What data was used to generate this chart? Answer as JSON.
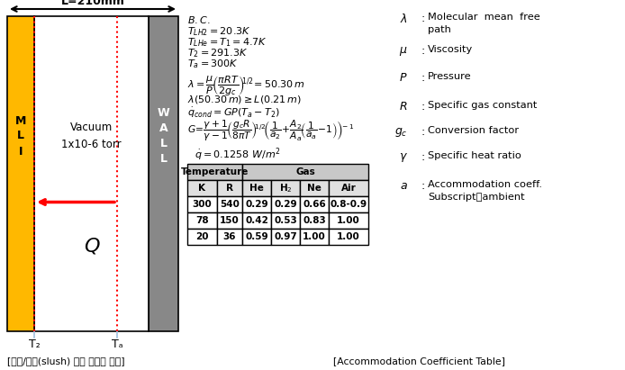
{
  "bg_color": "#ffffff",
  "bottom_left_label": "[액체/고체(slush) 수소 열침투 조건]",
  "bottom_right_label": "[Accommodation Coefficient Table]",
  "L_label": "L=210mm",
  "vacuum_text": "Vacuum\n1x10-6 torr",
  "Q_label": "Q",
  "T2_label": "T₂",
  "Ta_label": "Tₐ",
  "MLI_label": "M\nL\nI",
  "WALL_label": "W\nA\nL\nL",
  "table_subheaders": [
    "K",
    "R",
    "He",
    "H₂",
    "Ne",
    "Air"
  ],
  "table_data": [
    [
      "300",
      "540",
      "0.29",
      "0.29",
      "0.66",
      "0.8-0.9"
    ],
    [
      "78",
      "150",
      "0.42",
      "0.53",
      "0.83",
      "1.00"
    ],
    [
      "20",
      "36",
      "0.59",
      "0.97",
      "1.00",
      "1.00"
    ]
  ]
}
